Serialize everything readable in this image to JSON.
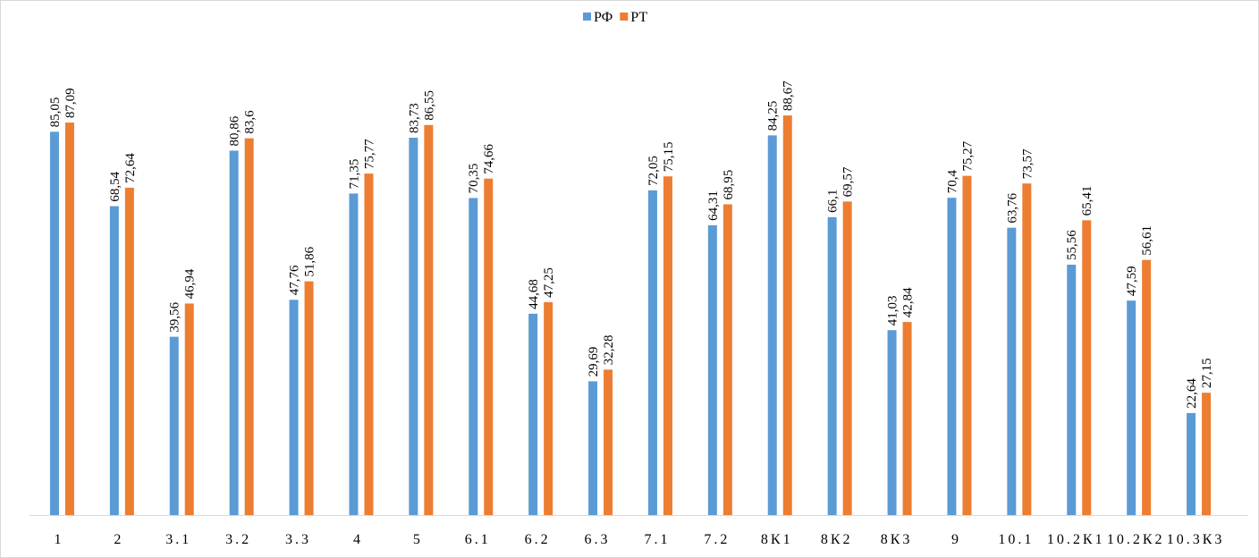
{
  "chart_data": {
    "type": "bar",
    "categories": [
      "1",
      "2",
      "3.1",
      "3.2",
      "3.3",
      "4",
      "5",
      "6.1",
      "6.2",
      "6.3",
      "7.1",
      "7.2",
      "8К1",
      "8К2",
      "8К3",
      "9",
      "10.1",
      "10.2К1",
      "10.2К2",
      "10.3К3"
    ],
    "series": [
      {
        "name": "РФ",
        "color": "#5b9bd5",
        "values": [
          85.05,
          68.54,
          39.56,
          80.86,
          47.76,
          71.35,
          83.73,
          70.35,
          44.68,
          29.69,
          72.05,
          64.31,
          84.25,
          66.1,
          41.03,
          70.4,
          63.76,
          55.56,
          47.59,
          22.64
        ],
        "value_labels": [
          "85,05",
          "68,54",
          "39,56",
          "80,86",
          "47,76",
          "71,35",
          "83,73",
          "70,35",
          "44,68",
          "29,69",
          "72,05",
          "64,31",
          "84,25",
          "66,1",
          "41,03",
          "70,4",
          "63,76",
          "55,56",
          "47,59",
          "22,64"
        ]
      },
      {
        "name": "РТ",
        "color": "#ed7d31",
        "values": [
          87.09,
          72.64,
          46.94,
          83.6,
          51.86,
          75.77,
          86.55,
          74.66,
          47.25,
          32.28,
          75.15,
          68.95,
          88.67,
          69.57,
          42.84,
          75.27,
          73.57,
          65.41,
          56.61,
          27.15
        ],
        "value_labels": [
          "87,09",
          "72,64",
          "46,94",
          "83,6",
          "51,86",
          "75,77",
          "86,55",
          "74,66",
          "47,25",
          "32,28",
          "75,15",
          "68,95",
          "88,67",
          "69,57",
          "42,84",
          "75,27",
          "73,57",
          "65,41",
          "56,61",
          "27,15"
        ]
      }
    ],
    "legend": "top"
  }
}
